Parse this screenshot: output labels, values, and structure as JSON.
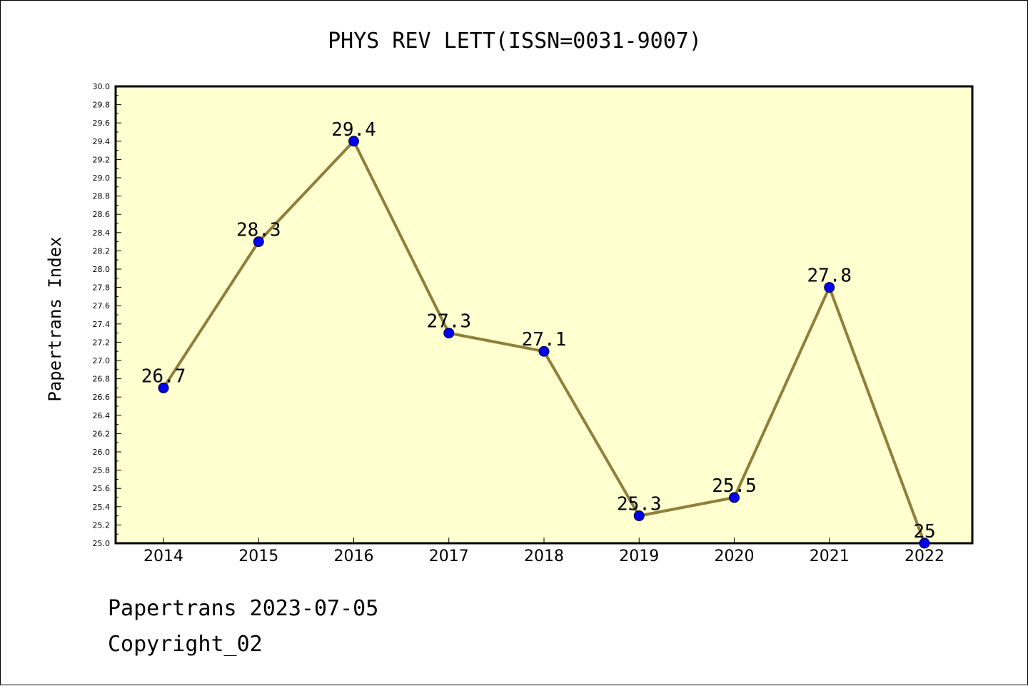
{
  "chart_data": {
    "type": "line",
    "title": "PHYS REV LETT(ISSN=0031-9007)",
    "xlabel": "",
    "ylabel": "Papertrans Index",
    "categories": [
      "2014",
      "2015",
      "2016",
      "2017",
      "2018",
      "2019",
      "2020",
      "2021",
      "2022"
    ],
    "values": [
      26.7,
      28.3,
      29.4,
      27.3,
      27.1,
      25.3,
      25.5,
      27.8,
      25.0
    ],
    "point_labels": [
      "26.7",
      "28.3",
      "29.4",
      "27.3",
      "27.1",
      "25.3",
      "25.5",
      "27.8",
      "25"
    ],
    "ylim": [
      25.0,
      30.0
    ],
    "y_ticks": [
      "25.0",
      "25.2",
      "25.4",
      "25.6",
      "25.8",
      "26.0",
      "26.2",
      "26.4",
      "26.6",
      "26.8",
      "27.0",
      "27.2",
      "27.4",
      "27.6",
      "27.8",
      "28.0",
      "28.2",
      "28.4",
      "28.6",
      "28.8",
      "29.0",
      "29.2",
      "29.4",
      "29.6",
      "29.8",
      "30.0"
    ],
    "grid": false,
    "colors": {
      "plot_background": "#ffffd0",
      "line": "#8f7f3a",
      "marker": "#0000ee"
    }
  },
  "footer": {
    "date_line": "Papertrans 2023-07-05",
    "copyright": "Copyright_02"
  }
}
